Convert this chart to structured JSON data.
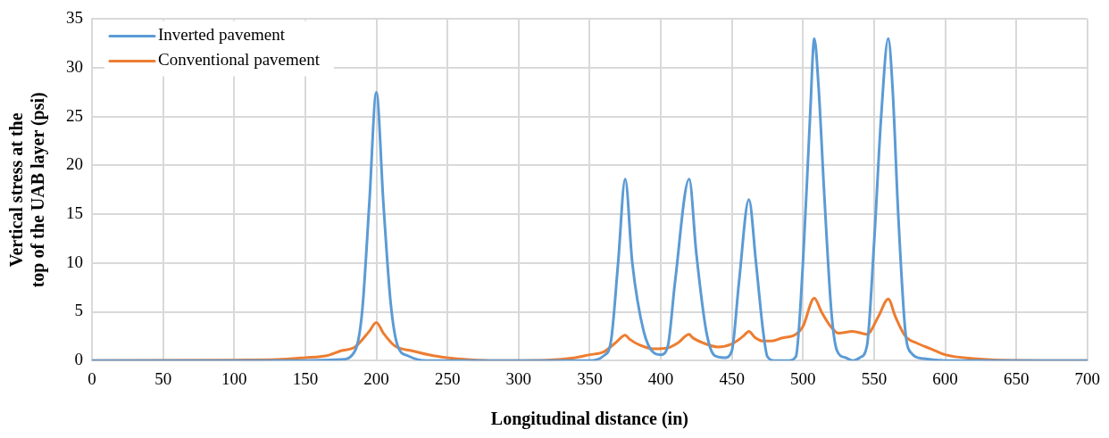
{
  "chart_data": {
    "type": "line",
    "xlabel": "Longitudinal distance (in)",
    "ylabel": "Vertical stress at the top of the UAB layer (psi)",
    "xlim": [
      0,
      700
    ],
    "xticks": [
      0,
      50,
      100,
      150,
      200,
      250,
      300,
      350,
      400,
      450,
      500,
      550,
      600,
      650,
      700
    ],
    "ylim": [
      0,
      35
    ],
    "yticks": [
      0,
      5,
      10,
      15,
      20,
      25,
      30,
      35
    ],
    "grid": true,
    "legend": "top left",
    "marker": "none",
    "line_style": "solid",
    "series": [
      {
        "name": "Inverted pavement",
        "color": "#5b9bd5",
        "x": [
          0,
          150,
          175,
          185,
          190,
          195,
          200,
          205,
          210,
          215,
          222,
          235,
          350,
          360,
          365,
          370,
          375,
          380,
          388,
          395,
          400,
          405,
          410,
          420,
          425,
          432,
          438,
          445,
          450,
          455,
          462,
          467,
          472,
          475,
          480,
          490,
          495,
          500,
          505,
          508,
          511,
          515,
          520,
          524,
          530,
          535,
          540,
          545,
          550,
          555,
          560,
          563,
          567,
          572,
          576,
          585,
          600,
          700
        ],
        "values": [
          0,
          0,
          0.1,
          1,
          5,
          16,
          27.5,
          16,
          6,
          1.5,
          0.5,
          0,
          0,
          0.5,
          2,
          10,
          18.6,
          10,
          3,
          0.8,
          0.6,
          1.5,
          8,
          18.6,
          11,
          3,
          0.5,
          0.3,
          1,
          8,
          16.5,
          10,
          3,
          0.4,
          0,
          0,
          0.4,
          10,
          25,
          33,
          28,
          17,
          5,
          1,
          0.3,
          0,
          0.3,
          1.5,
          12,
          25,
          33,
          28,
          15,
          3,
          0.8,
          0.2,
          0,
          0
        ]
      },
      {
        "name": "Conventional pavement",
        "color": "#ed7d31",
        "x": [
          0,
          100,
          130,
          150,
          165,
          175,
          185,
          195,
          200,
          205,
          213,
          225,
          240,
          260,
          280,
          320,
          340,
          350,
          360,
          368,
          375,
          378,
          385,
          395,
          405,
          412,
          420,
          422,
          430,
          440,
          450,
          458,
          462,
          466,
          472,
          478,
          485,
          495,
          500,
          508,
          513,
          520,
          525,
          535,
          545,
          553,
          560,
          565,
          572,
          580,
          590,
          600,
          620,
          640,
          700
        ],
        "values": [
          0,
          0.05,
          0.1,
          0.3,
          0.5,
          1,
          1.4,
          3,
          3.9,
          2.8,
          1.5,
          1,
          0.5,
          0.15,
          0,
          0.05,
          0.3,
          0.6,
          0.9,
          1.8,
          2.6,
          2.2,
          1.6,
          1.2,
          1.3,
          1.8,
          2.7,
          2.4,
          1.8,
          1.4,
          1.7,
          2.5,
          3,
          2.4,
          2,
          2,
          2.3,
          2.7,
          3.5,
          6.4,
          5,
          3.4,
          2.8,
          3,
          2.7,
          4.5,
          6.3,
          4.5,
          2.5,
          1.8,
          1.2,
          0.6,
          0.2,
          0.05,
          0
        ]
      }
    ]
  }
}
